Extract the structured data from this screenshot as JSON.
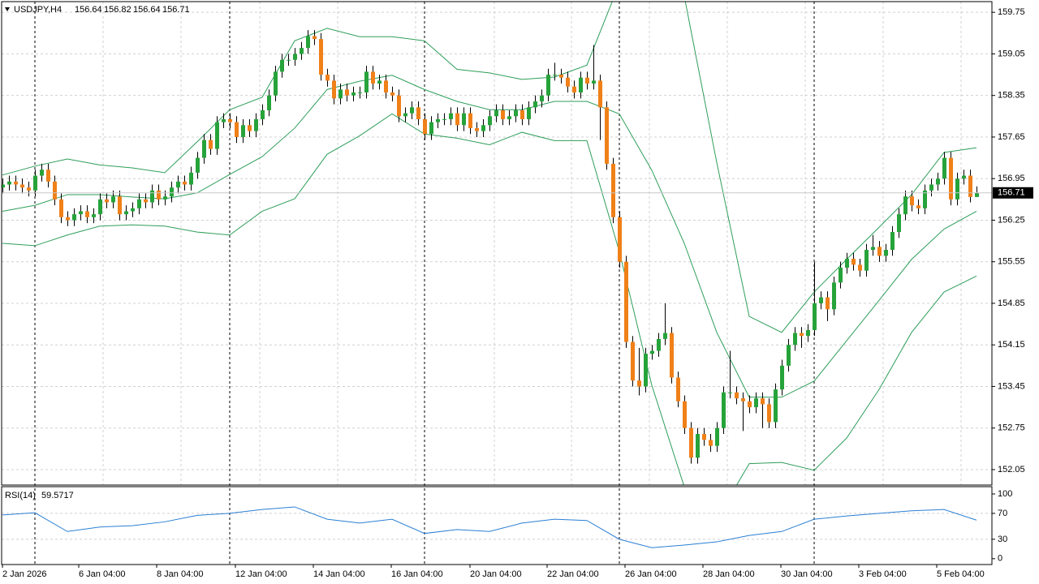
{
  "chart_data": {
    "type": "candlestick",
    "symbol": "USDJPY,H4",
    "bull_color": "#26a33a",
    "bear_color": "#f08018",
    "ylim": [
      151.79,
      159.93
    ],
    "yticks": [
      159.75,
      159.05,
      158.35,
      157.65,
      156.95,
      156.25,
      155.55,
      154.85,
      154.15,
      153.45,
      152.75,
      152.05
    ],
    "grid": true,
    "xlabels": [
      "2 Jan 2026",
      "6 Jan 04:00",
      "8 Jan 04:00",
      "12 Jan 04:00",
      "14 Jan 04:00",
      "16 Jan 04:00",
      "20 Jan 04:00",
      "22 Jan 04:00",
      "26 Jan 04:00",
      "28 Jan 04:00",
      "30 Jan 04:00",
      "3 Feb 04:00",
      "5 Feb 04:00"
    ],
    "ohlc": [
      [
        156.8,
        156.95,
        156.7,
        156.85
      ],
      [
        156.85,
        157.0,
        156.75,
        156.9
      ],
      [
        156.9,
        157.0,
        156.75,
        156.85
      ],
      [
        156.85,
        156.95,
        156.7,
        156.8
      ],
      [
        156.8,
        156.9,
        156.65,
        156.75
      ],
      [
        156.75,
        157.1,
        156.65,
        157.0
      ],
      [
        157.0,
        157.2,
        156.9,
        157.1
      ],
      [
        157.1,
        157.2,
        156.8,
        156.9
      ],
      [
        156.9,
        157.0,
        156.5,
        156.6
      ],
      [
        156.6,
        156.7,
        156.2,
        156.3
      ],
      [
        156.3,
        156.4,
        156.15,
        156.25
      ],
      [
        156.25,
        156.45,
        156.15,
        156.35
      ],
      [
        156.35,
        156.5,
        156.25,
        156.4
      ],
      [
        156.4,
        156.5,
        156.2,
        156.3
      ],
      [
        156.3,
        156.45,
        156.2,
        156.35
      ],
      [
        156.35,
        156.7,
        156.25,
        156.6
      ],
      [
        156.6,
        156.7,
        156.45,
        156.55
      ],
      [
        156.55,
        156.75,
        156.45,
        156.65
      ],
      [
        156.65,
        156.75,
        156.25,
        156.35
      ],
      [
        156.35,
        156.5,
        156.25,
        156.4
      ],
      [
        156.4,
        156.55,
        156.3,
        156.45
      ],
      [
        156.45,
        156.7,
        156.35,
        156.6
      ],
      [
        156.6,
        156.7,
        156.45,
        156.55
      ],
      [
        156.55,
        156.85,
        156.45,
        156.75
      ],
      [
        156.75,
        156.85,
        156.5,
        156.6
      ],
      [
        156.6,
        156.75,
        156.5,
        156.65
      ],
      [
        156.65,
        156.9,
        156.55,
        156.8
      ],
      [
        156.8,
        157.0,
        156.7,
        156.9
      ],
      [
        156.9,
        157.0,
        156.75,
        156.85
      ],
      [
        156.85,
        157.15,
        156.75,
        157.05
      ],
      [
        157.05,
        157.4,
        156.95,
        157.3
      ],
      [
        157.3,
        157.7,
        157.2,
        157.6
      ],
      [
        157.6,
        157.7,
        157.35,
        157.45
      ],
      [
        157.45,
        158.0,
        157.35,
        157.9
      ],
      [
        157.9,
        158.05,
        157.8,
        157.95
      ],
      [
        157.95,
        158.05,
        157.8,
        157.9
      ],
      [
        157.9,
        158.0,
        157.55,
        157.65
      ],
      [
        157.65,
        157.95,
        157.55,
        157.85
      ],
      [
        157.85,
        157.95,
        157.65,
        157.75
      ],
      [
        157.75,
        158.05,
        157.65,
        157.95
      ],
      [
        157.95,
        158.2,
        157.85,
        158.1
      ],
      [
        158.1,
        158.45,
        158.0,
        158.35
      ],
      [
        158.35,
        158.85,
        158.25,
        158.75
      ],
      [
        158.75,
        159.05,
        158.65,
        158.95
      ],
      [
        158.95,
        159.05,
        158.85,
        158.95
      ],
      [
        158.95,
        159.15,
        158.85,
        159.05
      ],
      [
        159.05,
        159.25,
        158.95,
        159.15
      ],
      [
        159.15,
        159.45,
        159.05,
        159.35
      ],
      [
        159.35,
        159.45,
        159.2,
        159.3
      ],
      [
        159.3,
        159.4,
        158.6,
        158.7
      ],
      [
        158.7,
        158.8,
        158.5,
        158.6
      ],
      [
        158.6,
        158.7,
        158.2,
        158.3
      ],
      [
        158.3,
        158.55,
        158.2,
        158.45
      ],
      [
        158.45,
        158.55,
        158.25,
        158.35
      ],
      [
        158.35,
        158.5,
        158.25,
        158.4
      ],
      [
        158.4,
        158.5,
        158.3,
        158.4
      ],
      [
        158.4,
        158.85,
        158.3,
        158.75
      ],
      [
        158.75,
        158.85,
        158.45,
        158.55
      ],
      [
        158.55,
        158.7,
        158.45,
        158.6
      ],
      [
        158.6,
        158.7,
        158.3,
        158.4
      ],
      [
        158.4,
        158.5,
        158.25,
        158.35
      ],
      [
        158.35,
        158.45,
        157.9,
        158.0
      ],
      [
        158.0,
        158.15,
        157.9,
        158.05
      ],
      [
        158.05,
        158.25,
        157.95,
        158.15
      ],
      [
        158.15,
        158.25,
        157.85,
        157.95
      ],
      [
        157.95,
        158.05,
        157.6,
        157.7
      ],
      [
        157.7,
        158.0,
        157.6,
        157.9
      ],
      [
        157.9,
        158.05,
        157.8,
        157.95
      ],
      [
        157.95,
        158.05,
        157.85,
        157.95
      ],
      [
        157.95,
        158.15,
        157.85,
        158.05
      ],
      [
        158.05,
        158.15,
        157.75,
        157.85
      ],
      [
        157.85,
        158.15,
        157.75,
        158.05
      ],
      [
        158.05,
        158.15,
        157.7,
        157.8
      ],
      [
        157.8,
        157.9,
        157.65,
        157.75
      ],
      [
        157.75,
        157.95,
        157.65,
        157.85
      ],
      [
        157.85,
        158.1,
        157.75,
        158.0
      ],
      [
        158.0,
        158.2,
        157.9,
        158.1
      ],
      [
        158.1,
        158.2,
        157.85,
        157.95
      ],
      [
        157.95,
        158.1,
        157.85,
        158.0
      ],
      [
        158.0,
        158.2,
        157.9,
        158.1
      ],
      [
        158.1,
        158.2,
        157.85,
        157.95
      ],
      [
        157.95,
        158.25,
        157.85,
        158.15
      ],
      [
        158.15,
        158.35,
        158.05,
        158.25
      ],
      [
        158.25,
        158.45,
        158.15,
        158.35
      ],
      [
        158.35,
        158.8,
        158.25,
        158.7
      ],
      [
        158.7,
        158.9,
        158.6,
        158.7
      ],
      [
        158.7,
        158.8,
        158.55,
        158.65
      ],
      [
        158.65,
        158.75,
        158.4,
        158.5
      ],
      [
        158.5,
        158.6,
        158.3,
        158.4
      ],
      [
        158.4,
        158.75,
        158.3,
        158.65
      ],
      [
        158.65,
        158.75,
        158.45,
        158.55
      ],
      [
        158.55,
        159.2,
        158.45,
        158.6
      ],
      [
        158.6,
        158.7,
        157.6,
        158.15
      ],
      [
        158.15,
        158.25,
        157.1,
        157.2
      ],
      [
        157.2,
        157.3,
        156.2,
        156.3
      ],
      [
        156.3,
        156.4,
        155.45,
        155.55
      ],
      [
        155.55,
        155.65,
        154.1,
        154.2
      ],
      [
        154.2,
        154.3,
        153.45,
        153.55
      ],
      [
        153.55,
        154.1,
        153.3,
        153.45
      ],
      [
        153.45,
        154.1,
        153.35,
        154.0
      ],
      [
        154.0,
        154.15,
        153.9,
        154.05
      ],
      [
        154.05,
        154.35,
        153.95,
        154.25
      ],
      [
        154.25,
        154.85,
        154.15,
        154.35
      ],
      [
        154.35,
        154.45,
        153.5,
        153.6
      ],
      [
        153.6,
        153.7,
        153.1,
        153.2
      ],
      [
        153.2,
        153.3,
        152.65,
        152.75
      ],
      [
        152.75,
        152.85,
        152.15,
        152.25
      ],
      [
        152.25,
        152.75,
        152.15,
        152.65
      ],
      [
        152.65,
        152.75,
        152.45,
        152.55
      ],
      [
        152.55,
        152.65,
        152.35,
        152.45
      ],
      [
        152.45,
        152.85,
        152.35,
        152.75
      ],
      [
        152.75,
        153.45,
        152.65,
        153.35
      ],
      [
        153.35,
        154.05,
        153.25,
        153.35
      ],
      [
        153.35,
        153.45,
        153.15,
        153.25
      ],
      [
        153.25,
        153.35,
        152.7,
        153.2
      ],
      [
        153.2,
        153.3,
        153.0,
        153.1
      ],
      [
        153.1,
        153.35,
        153.0,
        153.25
      ],
      [
        153.25,
        153.35,
        152.75,
        153.15
      ],
      [
        153.15,
        153.25,
        152.75,
        152.85
      ],
      [
        152.85,
        153.5,
        152.75,
        153.4
      ],
      [
        153.4,
        153.9,
        153.3,
        153.8
      ],
      [
        153.8,
        154.25,
        153.7,
        154.15
      ],
      [
        154.15,
        154.45,
        154.05,
        154.35
      ],
      [
        154.35,
        154.45,
        154.1,
        154.3
      ],
      [
        154.3,
        154.5,
        154.2,
        154.4
      ],
      [
        154.4,
        155.55,
        154.3,
        154.85
      ],
      [
        154.85,
        155.05,
        154.75,
        154.95
      ],
      [
        154.95,
        155.05,
        154.55,
        154.75
      ],
      [
        154.75,
        155.3,
        154.65,
        155.2
      ],
      [
        155.2,
        155.55,
        155.1,
        155.45
      ],
      [
        155.45,
        155.7,
        155.35,
        155.6
      ],
      [
        155.6,
        155.7,
        155.4,
        155.5
      ],
      [
        155.5,
        155.6,
        155.3,
        155.4
      ],
      [
        155.4,
        155.85,
        155.3,
        155.75
      ],
      [
        155.75,
        156.0,
        155.65,
        155.8
      ],
      [
        155.8,
        155.9,
        155.55,
        155.65
      ],
      [
        155.65,
        155.85,
        155.55,
        155.75
      ],
      [
        155.75,
        156.15,
        155.65,
        156.05
      ],
      [
        156.05,
        156.45,
        155.95,
        156.35
      ],
      [
        156.35,
        156.75,
        156.25,
        156.65
      ],
      [
        156.65,
        156.75,
        156.4,
        156.5
      ],
      [
        156.5,
        156.6,
        156.35,
        156.45
      ],
      [
        156.45,
        156.85,
        156.35,
        156.75
      ],
      [
        156.75,
        156.95,
        156.65,
        156.85
      ],
      [
        156.85,
        157.05,
        156.75,
        156.95
      ],
      [
        156.95,
        157.4,
        156.85,
        157.3
      ],
      [
        157.3,
        157.4,
        156.5,
        156.6
      ],
      [
        156.6,
        157.05,
        156.5,
        156.95
      ],
      [
        156.95,
        157.1,
        156.85,
        157.0
      ],
      [
        157.0,
        157.1,
        156.55,
        156.64
      ],
      [
        156.64,
        156.82,
        156.64,
        156.71
      ]
    ],
    "bands": {
      "color": "#2e9e5a",
      "x": [
        0,
        5,
        10,
        15,
        20,
        25,
        30,
        35,
        40,
        45,
        50,
        55,
        60,
        65,
        70,
        75,
        80,
        85,
        90,
        95,
        100,
        105,
        110,
        115,
        120,
        125,
        130,
        135,
        140,
        145,
        150
      ],
      "upper": [
        157.01,
        157.16,
        157.28,
        157.18,
        157.13,
        157.05,
        157.57,
        158.11,
        158.32,
        159.27,
        159.48,
        159.34,
        159.34,
        159.27,
        158.79,
        158.73,
        158.62,
        158.66,
        158.86,
        160.23,
        161.2,
        160.02,
        157.22,
        154.63,
        154.36,
        155.04,
        155.59,
        156.13,
        156.68,
        157.39,
        157.47
      ],
      "middle": [
        156.4,
        156.5,
        156.68,
        156.68,
        156.64,
        156.61,
        156.71,
        157.02,
        157.32,
        157.8,
        158.45,
        158.59,
        158.69,
        158.45,
        158.25,
        158.11,
        158.11,
        158.25,
        158.25,
        158.04,
        157.09,
        155.86,
        154.36,
        153.27,
        153.27,
        153.54,
        154.22,
        154.9,
        155.59,
        156.1,
        156.4
      ],
      "lower": [
        155.86,
        155.82,
        156.0,
        156.15,
        156.17,
        156.15,
        156.05,
        156.0,
        156.4,
        156.61,
        157.36,
        157.67,
        158.04,
        157.7,
        157.63,
        157.52,
        157.73,
        157.59,
        157.59,
        155.72,
        153.47,
        151.76,
        151.22,
        152.15,
        152.17,
        152.04,
        152.58,
        153.4,
        154.36,
        155.04,
        155.31
      ]
    },
    "rsi": {
      "name": "RSI(14)",
      "color": "#2a7fd4",
      "ylim": [
        -9,
        110
      ],
      "yticks": [
        100,
        70,
        30,
        0
      ],
      "x": [
        0,
        5,
        10,
        15,
        20,
        25,
        30,
        35,
        40,
        45,
        50,
        55,
        60,
        65,
        70,
        75,
        80,
        85,
        90,
        95,
        100,
        105,
        110,
        115,
        120,
        125,
        130,
        135,
        140,
        145,
        150
      ],
      "values": [
        67.5,
        71,
        42,
        49,
        51,
        57,
        67,
        70,
        76,
        80,
        61,
        55,
        61,
        39,
        45,
        42,
        55,
        61,
        59,
        30,
        17,
        21,
        26,
        36,
        42,
        61,
        66,
        70,
        74,
        76,
        59.5717
      ]
    }
  }
}
